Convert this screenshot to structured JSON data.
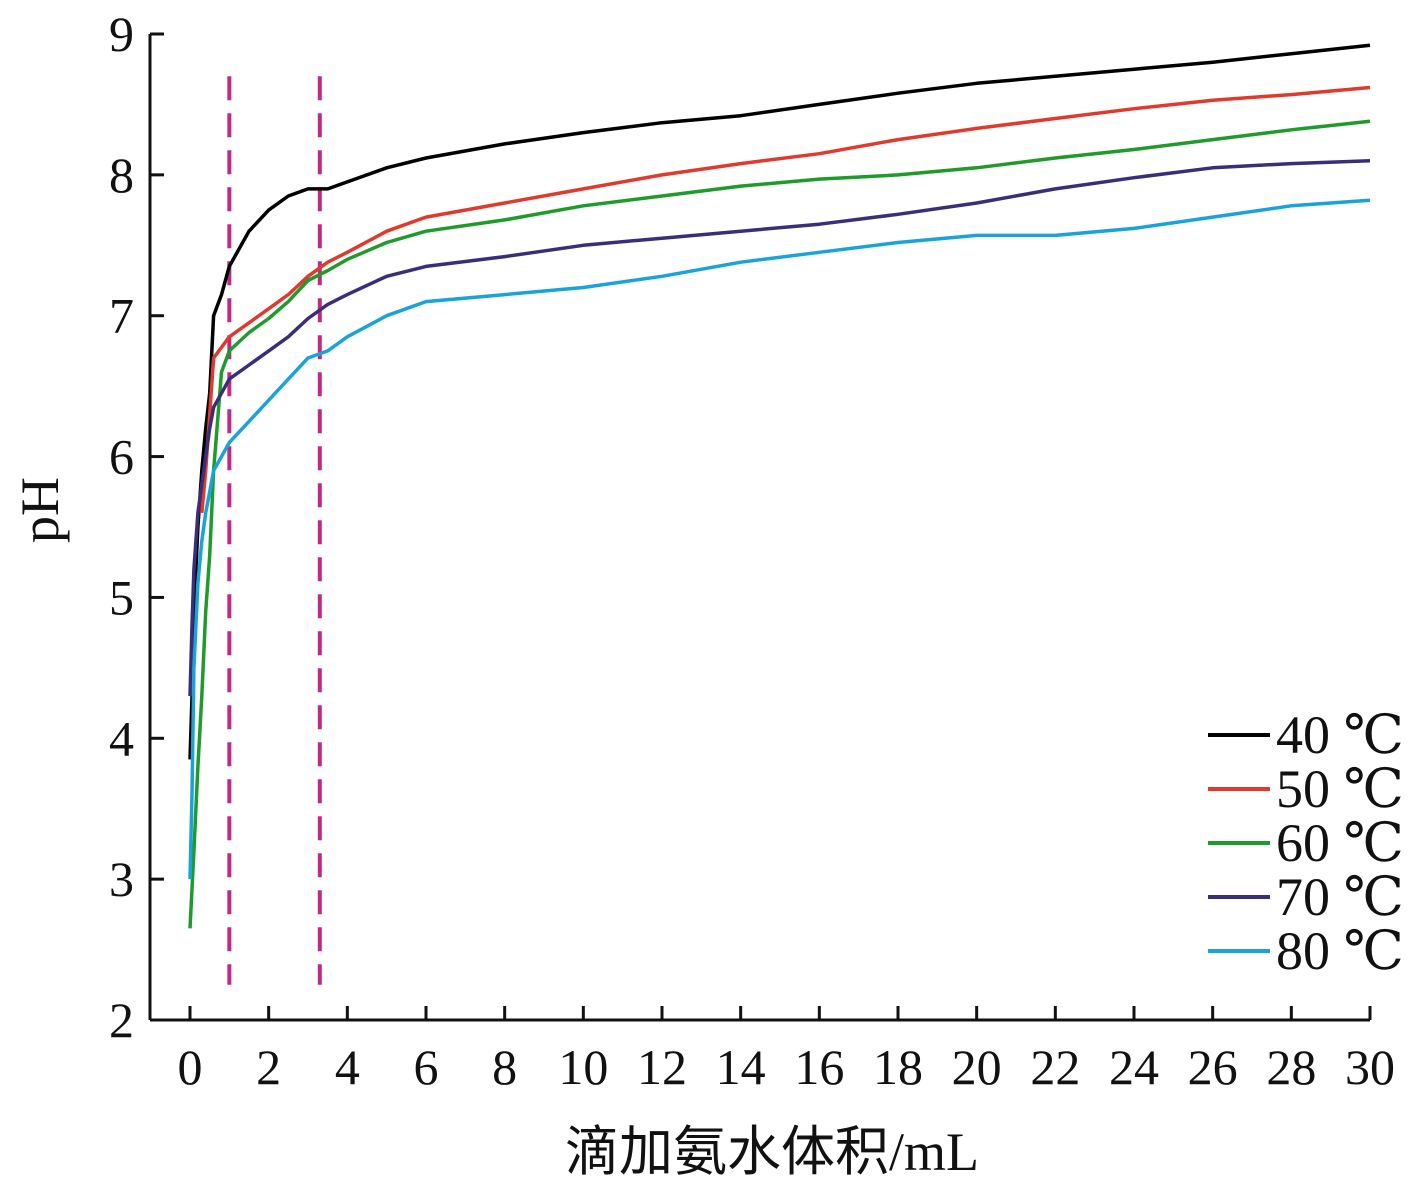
{
  "chart_data": {
    "type": "line",
    "xlabel": "滴加氨水体积/mL",
    "ylabel": "pH",
    "xlim": [
      0,
      30
    ],
    "ylim": [
      2,
      9
    ],
    "xticks": [
      "0",
      "2",
      "4",
      "6",
      "8",
      "10",
      "12",
      "14",
      "16",
      "18",
      "20",
      "22",
      "24",
      "26",
      "28",
      "30"
    ],
    "yticks": [
      "2",
      "3",
      "4",
      "5",
      "6",
      "7",
      "8",
      "9"
    ],
    "grid": false,
    "legend_position": "bottom-right",
    "reference_lines": [
      {
        "x": 1.0,
        "color": "#c02a86",
        "style": "dashed"
      },
      {
        "x": 3.3,
        "color": "#c02a86",
        "style": "dashed"
      }
    ],
    "series": [
      {
        "name": "40 ℃",
        "color": "#000000",
        "x": [
          0,
          0.05,
          0.1,
          0.2,
          0.3,
          0.4,
          0.5,
          0.6,
          0.8,
          1.0,
          1.5,
          2.0,
          2.5,
          3.0,
          3.5,
          4,
          5,
          6,
          8,
          10,
          12,
          14,
          16,
          18,
          20,
          22,
          24,
          26,
          28,
          30
        ],
        "y": [
          3.85,
          4.3,
          4.9,
          5.5,
          5.9,
          6.2,
          6.45,
          7.0,
          7.15,
          7.35,
          7.6,
          7.75,
          7.85,
          7.9,
          7.9,
          7.95,
          8.05,
          8.12,
          8.22,
          8.3,
          8.37,
          8.42,
          8.5,
          8.58,
          8.65,
          8.7,
          8.75,
          8.8,
          8.86,
          8.92
        ]
      },
      {
        "name": "50 ℃",
        "color": "#e03a2f",
        "x": [
          0.3,
          0.4,
          0.5,
          0.6,
          1.0,
          1.5,
          2.0,
          2.5,
          3.0,
          3.5,
          4,
          5,
          6,
          8,
          10,
          12,
          14,
          16,
          18,
          20,
          22,
          24,
          26,
          28,
          30
        ],
        "y": [
          5.6,
          5.9,
          6.3,
          6.7,
          6.85,
          6.95,
          7.05,
          7.15,
          7.28,
          7.38,
          7.45,
          7.6,
          7.7,
          7.8,
          7.9,
          8.0,
          8.08,
          8.15,
          8.25,
          8.33,
          8.4,
          8.47,
          8.53,
          8.57,
          8.62
        ]
      },
      {
        "name": "60 ℃",
        "color": "#1e9b2a",
        "x": [
          0,
          0.1,
          0.2,
          0.3,
          0.4,
          0.5,
          0.6,
          0.8,
          1.0,
          1.5,
          2.0,
          2.5,
          3.0,
          3.5,
          4,
          5,
          6,
          8,
          10,
          12,
          14,
          16,
          18,
          20,
          22,
          24,
          26,
          28,
          30
        ],
        "y": [
          2.65,
          3.2,
          3.8,
          4.3,
          4.9,
          5.3,
          5.9,
          6.6,
          6.75,
          6.88,
          6.98,
          7.1,
          7.25,
          7.32,
          7.4,
          7.52,
          7.6,
          7.68,
          7.78,
          7.85,
          7.92,
          7.97,
          8.0,
          8.05,
          8.12,
          8.18,
          8.25,
          8.32,
          8.38
        ]
      },
      {
        "name": "70 ℃",
        "color": "#3b2d7a",
        "x": [
          0,
          0.05,
          0.1,
          0.15,
          0.2,
          0.3,
          0.4,
          0.5,
          0.6,
          0.8,
          1.0,
          1.5,
          2.0,
          2.5,
          3.0,
          3.5,
          4,
          5,
          6,
          8,
          10,
          12,
          14,
          16,
          18,
          20,
          22,
          24,
          26,
          28,
          30
        ],
        "y": [
          4.3,
          4.8,
          5.2,
          5.4,
          5.6,
          5.8,
          6.0,
          6.2,
          6.35,
          6.45,
          6.55,
          6.65,
          6.75,
          6.85,
          6.98,
          7.08,
          7.15,
          7.28,
          7.35,
          7.42,
          7.5,
          7.55,
          7.6,
          7.65,
          7.72,
          7.8,
          7.9,
          7.98,
          8.05,
          8.08,
          8.1
        ]
      },
      {
        "name": "80 ℃",
        "color": "#1aa3d8",
        "x": [
          0,
          0.05,
          0.1,
          0.2,
          0.3,
          0.4,
          0.5,
          0.6,
          0.8,
          1.0,
          1.5,
          2.0,
          2.5,
          3.0,
          3.5,
          4,
          5,
          6,
          8,
          10,
          12,
          14,
          16,
          18,
          20,
          22,
          24,
          26,
          28,
          30
        ],
        "y": [
          3.0,
          3.6,
          4.5,
          5.1,
          5.4,
          5.6,
          5.75,
          5.9,
          6.0,
          6.1,
          6.25,
          6.4,
          6.55,
          6.7,
          6.75,
          6.85,
          7.0,
          7.1,
          7.15,
          7.2,
          7.28,
          7.38,
          7.45,
          7.52,
          7.57,
          7.57,
          7.62,
          7.7,
          7.78,
          7.82
        ]
      }
    ]
  }
}
